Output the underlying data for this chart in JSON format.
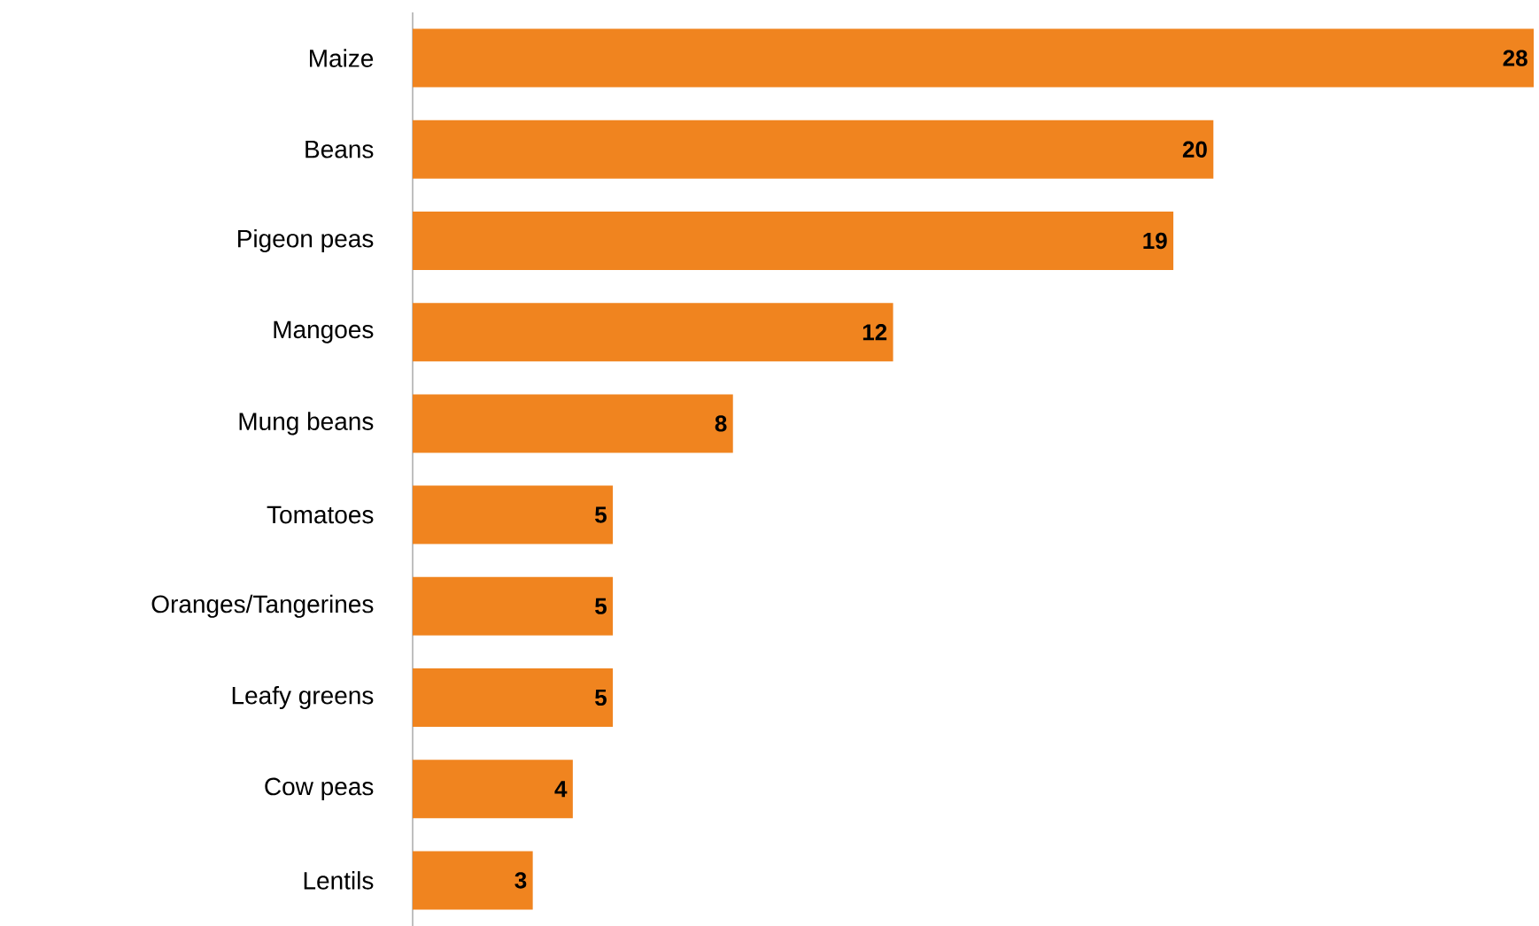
{
  "chart_data": {
    "type": "bar",
    "orientation": "horizontal",
    "categories": [
      "Maize",
      "Beans",
      "Pigeon peas",
      "Mangoes",
      "Mung beans",
      "Tomatoes",
      "Oranges/Tangerines",
      "Leafy greens",
      "Cow peas",
      "Lentils"
    ],
    "values": [
      28,
      20,
      19,
      12,
      8,
      5,
      5,
      5,
      4,
      3
    ],
    "color": "#f0841f",
    "data_labels": true
  }
}
